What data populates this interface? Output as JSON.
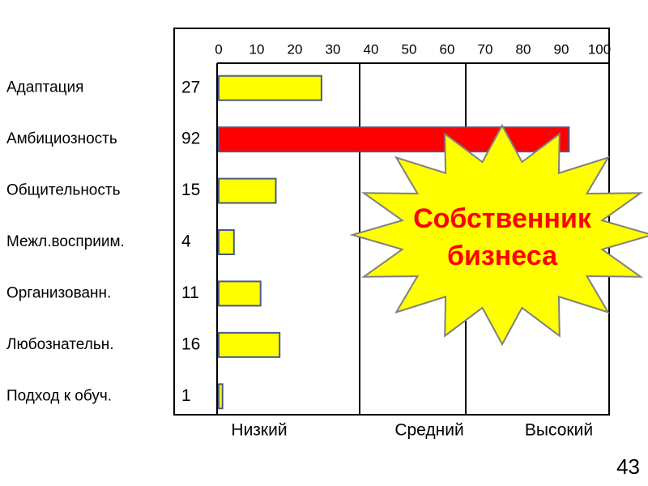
{
  "chart_data": {
    "type": "bar",
    "orientation": "horizontal",
    "categories": [
      "Адаптация",
      "Амбициозность",
      "Общительность",
      "Межл.восприим.",
      "Организованн.",
      "Любознательн.",
      "Подход к обуч."
    ],
    "values": [
      27,
      92,
      15,
      4,
      11,
      16,
      1
    ],
    "colors": [
      "#ffff00",
      "#ff0000",
      "#ffff00",
      "#ffff00",
      "#ffff00",
      "#ffff00",
      "#ffff00"
    ],
    "xlim": [
      0,
      100
    ],
    "xticks": [
      0,
      10,
      20,
      30,
      40,
      50,
      60,
      70,
      80,
      90,
      100
    ],
    "zones": [
      "Низкий",
      "Средний",
      "Высокий"
    ],
    "annotation": [
      "Собственник",
      "бизнеса"
    ],
    "page_number": "43"
  }
}
